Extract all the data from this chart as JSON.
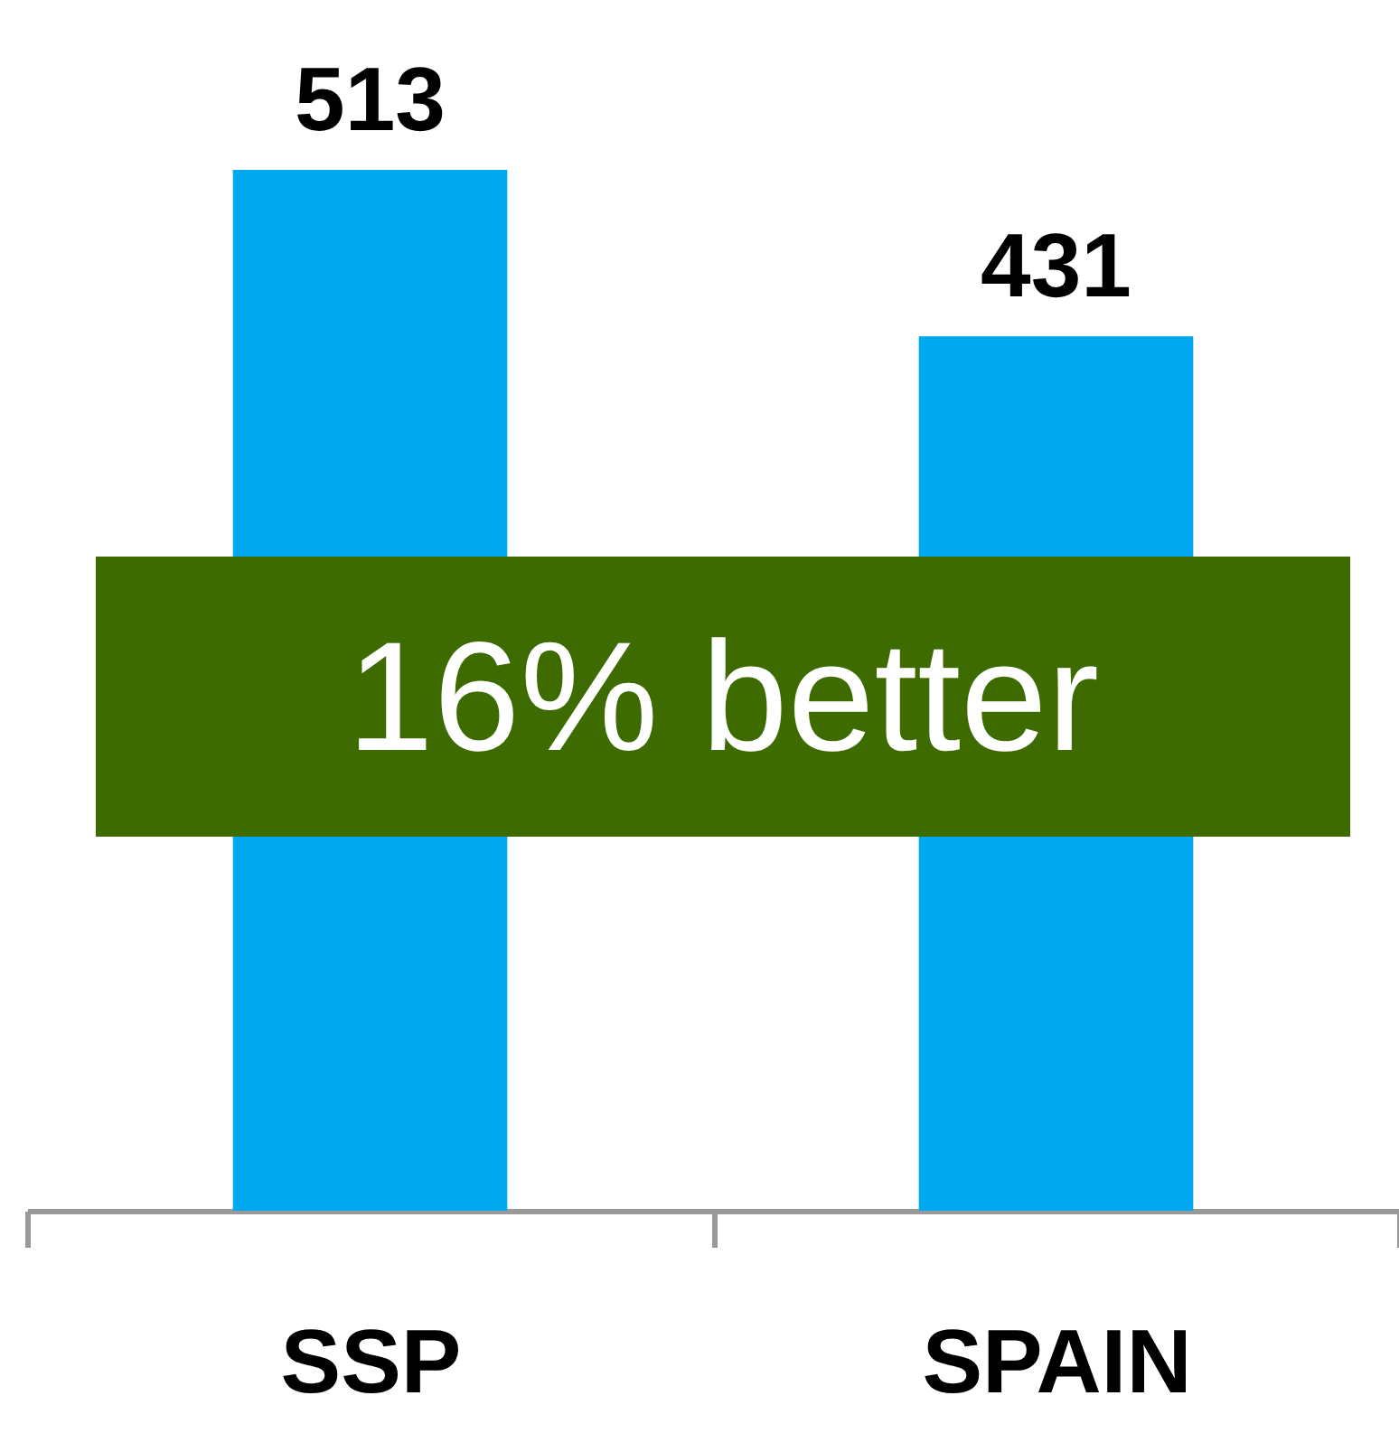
{
  "chart_data": {
    "type": "bar",
    "categories": [
      "SSP",
      "SPAIN"
    ],
    "values": [
      513,
      431
    ],
    "colors": [
      "#00a8f0",
      "#00a8f0"
    ],
    "data_labels": true,
    "annotations": [
      "16% better"
    ]
  }
}
